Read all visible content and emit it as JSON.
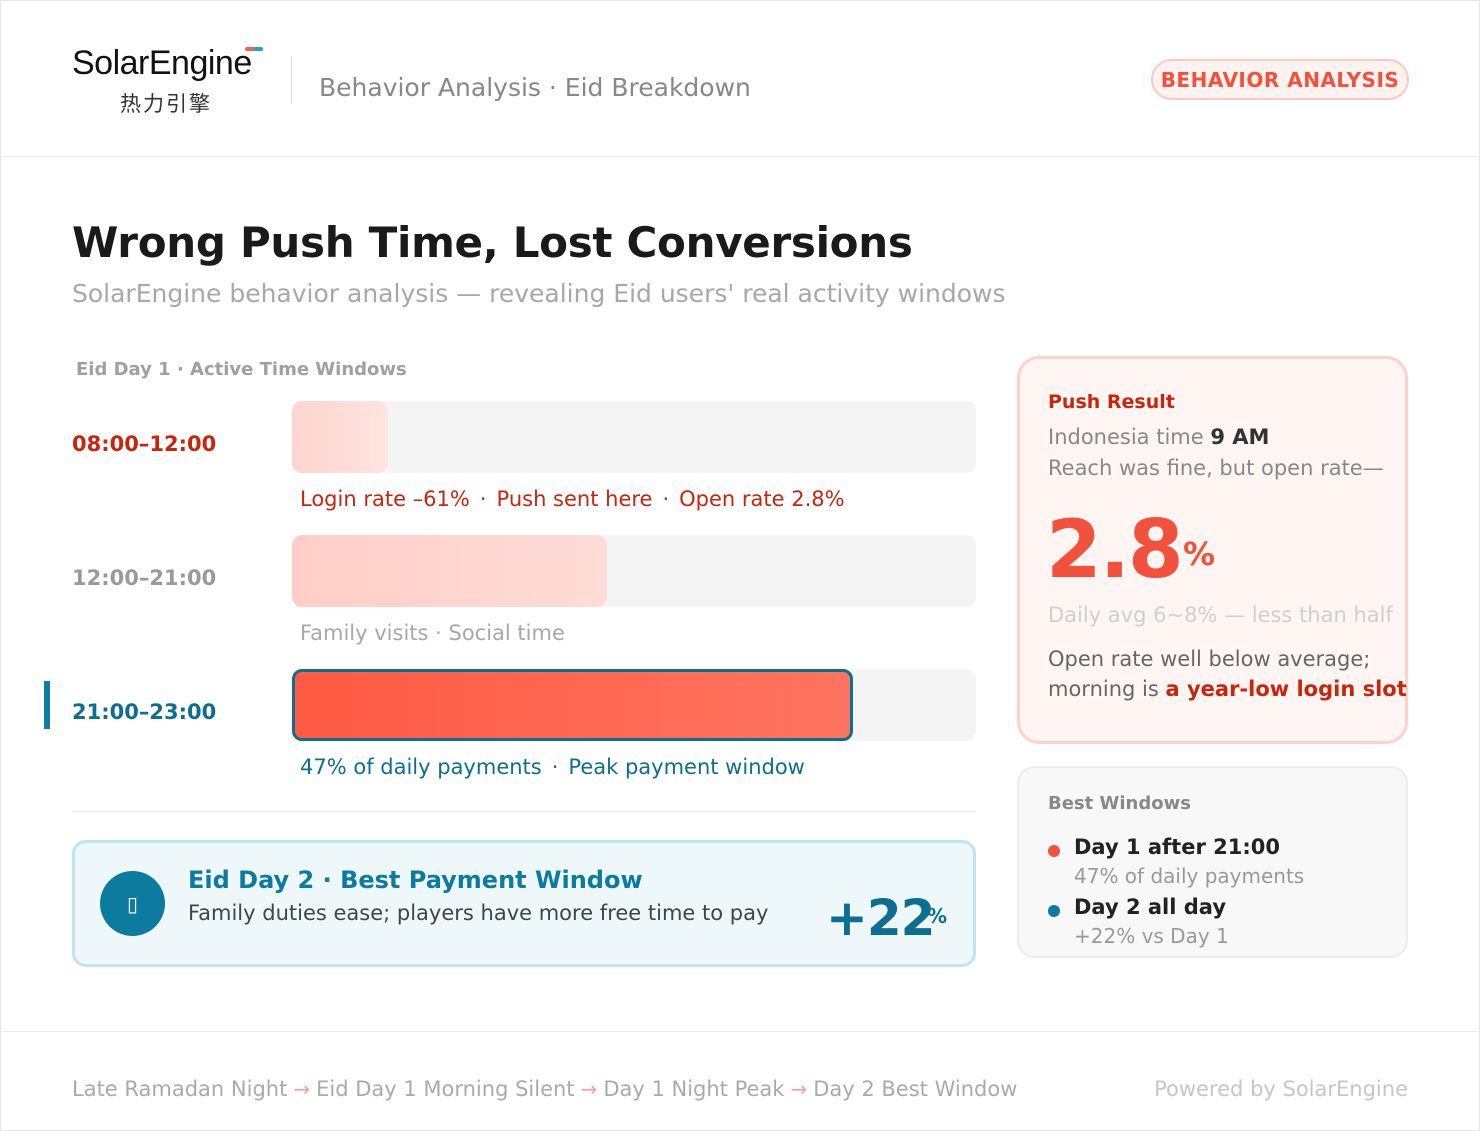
{
  "header": {
    "logo_en": "SolarEngine",
    "logo_cn": "热力引擎",
    "breadcrumb": "Behavior Analysis · Eid Breakdown",
    "badge": "BEHAVIOR ANALYSIS"
  },
  "title": "Wrong Push Time, Lost Conversions",
  "subtitle": "SolarEngine behavior analysis — revealing Eid users' real activity windows",
  "timeline": {
    "label": "Eid Day 1 · Active Time Windows",
    "rows": [
      {
        "time": "08:00–12:00",
        "level": 0.14,
        "notes": [
          "Login rate –61%",
          "Push sent here",
          "Open rate 2.8%"
        ]
      },
      {
        "time": "12:00–21:00",
        "level": 0.46,
        "notes": [
          "Family visits · Social time"
        ]
      },
      {
        "time": "21:00–23:00",
        "level": 0.82,
        "notes": [
          "47% of daily payments",
          "Peak payment window"
        ]
      }
    ],
    "note_separator": "·"
  },
  "day2": {
    "icon": "calendar-icon",
    "icon_glyph": "▯",
    "title": "Eid Day 2 · Best Payment Window",
    "desc": "Family duties ease; players have more free time to pay",
    "value": "+22",
    "unit": "%"
  },
  "push_result": {
    "label": "Push Result",
    "line1_prefix": "Indonesia time ",
    "line1_bold": "9 AM",
    "line2": "Reach was fine, but open rate—",
    "big_value": "2.8",
    "big_unit": "%",
    "avg": "Daily avg 6~8% — less than half",
    "desc1": "Open rate well below average;",
    "desc2_prefix": "morning is ",
    "desc2_bold": "a year-low login slot"
  },
  "best_windows": {
    "label": "Best Windows",
    "items": [
      {
        "title": "Day 1 after 21:00",
        "sub": "47% of daily payments"
      },
      {
        "title": "Day 2 all day",
        "sub": "+22% vs Day 1"
      }
    ]
  },
  "footer": {
    "flow": [
      "Late Ramadan Night",
      "Eid Day 1 Morning Silent",
      "Day 1 Night Peak",
      "Day 2 Best Window"
    ],
    "arrow": "→",
    "powered": "Powered by SolarEngine"
  },
  "colors": {
    "accent_red": "#f2513d",
    "accent_teal": "#0d7aa0",
    "alert_red": "#c8250f"
  }
}
